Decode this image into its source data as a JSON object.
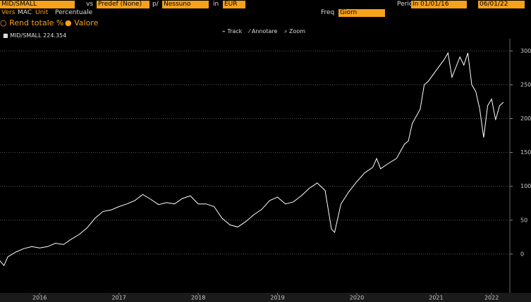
{
  "toolbar": {
    "security": "MID/SMALL",
    "vs_label": "vs",
    "benchmark": "Predef (None)",
    "per_label": "p/",
    "per_value": "Nessuno",
    "in_label": "in",
    "currency": "EUR",
    "period_label": "Perio",
    "period_value": "Interv",
    "start_date": "01/01/16",
    "end_date": "06/01/22",
    "view_label": "Vers",
    "view_value": "MAC",
    "unit_label": "Unit",
    "unit_value": "Percentuale",
    "freq_label": "Freq",
    "freq_value": "Giorn",
    "radio_total_return": "Rend totale %",
    "radio_value": "Valore",
    "track": "Track",
    "annotate": "Annotare",
    "zoom": "Zoom"
  },
  "chart_data": {
    "type": "line",
    "x": [
      2016.0,
      2016.05,
      2016.1,
      2016.2,
      2016.3,
      2016.4,
      2016.5,
      2016.6,
      2016.7,
      2016.8,
      2016.9,
      2017.0,
      2017.1,
      2017.2,
      2017.3,
      2017.4,
      2017.5,
      2017.6,
      2017.7,
      2017.8,
      2017.9,
      2018.0,
      2018.1,
      2018.2,
      2018.3,
      2018.4,
      2018.5,
      2018.6,
      2018.7,
      2018.8,
      2018.9,
      2019.0,
      2019.1,
      2019.2,
      2019.3,
      2019.4,
      2019.5,
      2019.6,
      2019.7,
      2019.8,
      2019.9,
      2020.0,
      2020.1,
      2020.18,
      2020.22,
      2020.3,
      2020.4,
      2020.5,
      2020.6,
      2020.7,
      2020.75,
      2020.8,
      2020.9,
      2021.0,
      2021.1,
      2021.15,
      2021.2,
      2021.3,
      2021.35,
      2021.4,
      2021.5,
      2021.6,
      2021.65,
      2021.7,
      2021.8,
      2021.85,
      2021.9,
      2021.95,
      2022.0,
      2022.05,
      2022.1,
      2022.15,
      2022.2,
      2022.25,
      2022.3,
      2022.35
    ],
    "series": [
      {
        "name": "MID/SMALL",
        "last_value": 224.354,
        "color": "#ffffff",
        "values": [
          -10,
          -17,
          -4,
          3,
          8,
          11,
          9,
          11,
          16,
          14,
          22,
          29,
          39,
          53,
          63,
          65,
          70,
          74,
          79,
          88,
          81,
          73,
          76,
          74,
          82,
          86,
          74,
          74,
          70,
          53,
          43,
          40,
          48,
          58,
          66,
          79,
          84,
          74,
          77,
          86,
          97,
          105,
          94,
          37,
          32,
          74,
          92,
          107,
          120,
          128,
          141,
          126,
          134,
          141,
          162,
          167,
          193,
          214,
          250,
          255,
          271,
          287,
          297,
          261,
          291,
          279,
          297,
          250,
          240,
          214,
          172,
          219,
          229,
          198,
          219,
          224.354
        ]
      }
    ],
    "xlim": [
      2016.0,
      2022.43
    ],
    "xticks": [
      {
        "value": 2016.5,
        "label": "2016"
      },
      {
        "value": 2017.5,
        "label": "2017"
      },
      {
        "value": 2018.5,
        "label": "2018"
      },
      {
        "value": 2019.5,
        "label": "2019"
      },
      {
        "value": 2020.5,
        "label": "2020"
      },
      {
        "value": 2021.5,
        "label": "2021"
      },
      {
        "value": 2022.2,
        "label": "2022"
      }
    ],
    "ylim": [
      -49,
      318
    ],
    "yticks": [
      0,
      50,
      100,
      150,
      200,
      250,
      300
    ],
    "grid": true
  }
}
